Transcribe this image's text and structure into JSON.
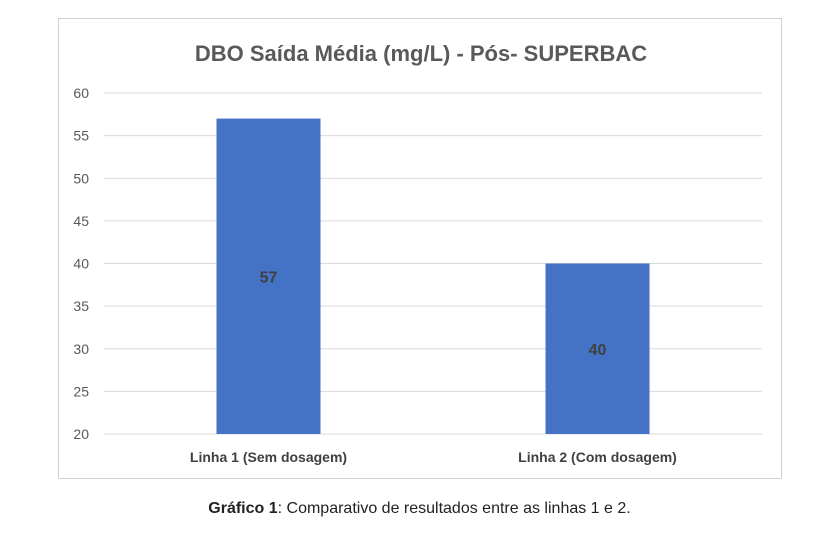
{
  "chart_data": {
    "type": "bar",
    "title": "DBO Saída Média (mg/L) - Pós- SUPERBAC",
    "categories": [
      "Linha 1 (Sem dosagem)",
      "Linha 2 (Com dosagem)"
    ],
    "values": [
      57,
      40
    ],
    "data_labels": [
      "57",
      "40"
    ],
    "ylim": [
      20,
      60
    ],
    "yticks": [
      20,
      25,
      30,
      35,
      40,
      45,
      50,
      55,
      60
    ],
    "xlabel": "",
    "ylabel": "",
    "grid": true,
    "bar_color": "#4472c4",
    "grid_color": "#d9d9d9"
  },
  "caption": {
    "label": "Gráfico 1",
    "text": ": Comparativo de resultados entre as linhas 1 e 2."
  }
}
